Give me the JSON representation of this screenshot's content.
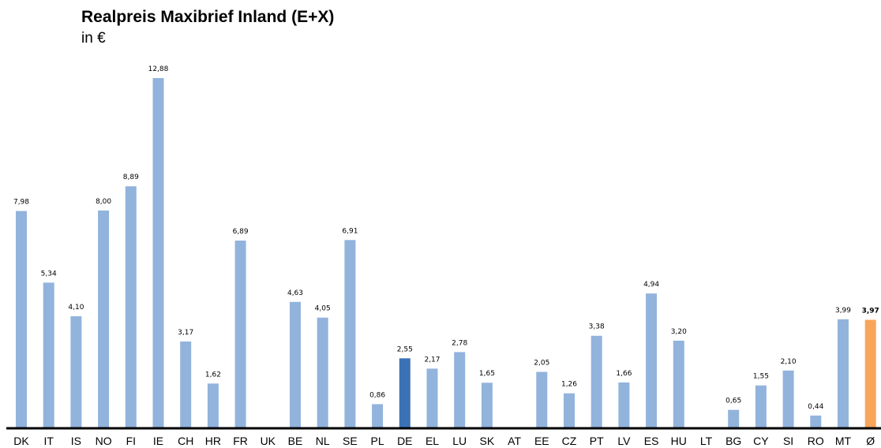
{
  "chart_data": {
    "type": "bar",
    "title": "Realpreis Maxibrief Inland (E+X)",
    "subtitle": "in €",
    "categories": [
      "DK",
      "IT",
      "IS",
      "NO",
      "FI",
      "IE",
      "CH",
      "HR",
      "FR",
      "UK",
      "BE",
      "NL",
      "SE",
      "PL",
      "DE",
      "EL",
      "LU",
      "SK",
      "AT",
      "EE",
      "CZ",
      "PT",
      "LV",
      "ES",
      "HU",
      "LT",
      "BG",
      "CY",
      "SI",
      "RO",
      "MT",
      "Ø"
    ],
    "values": [
      7.98,
      5.34,
      4.1,
      8.0,
      8.89,
      12.88,
      3.17,
      1.62,
      6.89,
      null,
      4.63,
      4.05,
      6.91,
      0.86,
      2.55,
      2.17,
      2.78,
      1.65,
      null,
      2.05,
      1.26,
      3.38,
      1.66,
      4.94,
      3.2,
      null,
      0.65,
      1.55,
      2.1,
      0.44,
      3.99,
      3.97
    ],
    "value_labels": [
      "7,98",
      "5,34",
      "4,10",
      "8,00",
      "8,89",
      "12,88",
      "3,17",
      "1,62",
      "6,89",
      "",
      "4,63",
      "4,05",
      "6,91",
      "0,86",
      "2,55",
      "2,17",
      "2,78",
      "1,65",
      "",
      "2,05",
      "1,26",
      "3,38",
      "1,66",
      "4,94",
      "3,20",
      "",
      "0,65",
      "1,55",
      "2,10",
      "0,44",
      "3,99",
      "3,97"
    ],
    "highlight": {
      "DE": "#3b72b6",
      "Ø": "#f8a55a"
    },
    "bar_color": "#92b3dc",
    "ylim": [
      0,
      13.2
    ],
    "grid": false,
    "legend": "none"
  }
}
